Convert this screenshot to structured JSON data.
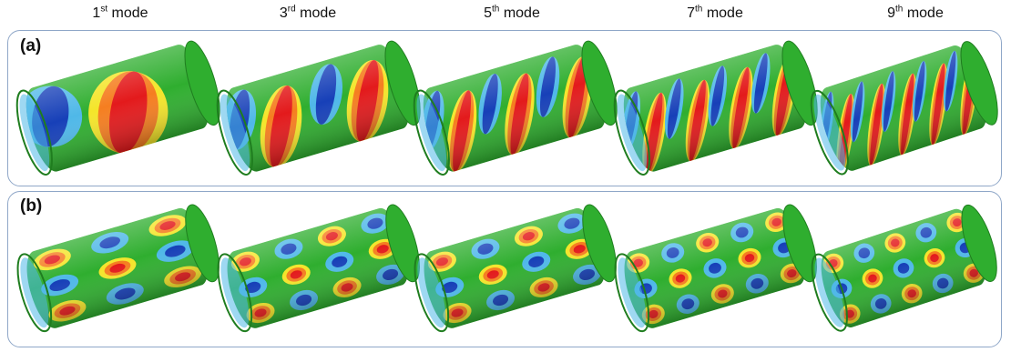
{
  "modes": [
    {
      "num": "1",
      "suffix": "st",
      "word": "mode"
    },
    {
      "num": "3",
      "suffix": "rd",
      "word": "mode"
    },
    {
      "num": "5",
      "suffix": "th",
      "word": "mode"
    },
    {
      "num": "7",
      "suffix": "th",
      "word": "mode"
    },
    {
      "num": "9",
      "suffix": "th",
      "word": "mode"
    }
  ],
  "panels": [
    {
      "label": "(a)",
      "pattern": "helical"
    },
    {
      "label": "(b)",
      "pattern": "checkerboard"
    }
  ],
  "colors": {
    "base": "#2fae2f",
    "red": "#e31a1c",
    "orange": "#f57e20",
    "yellow": "#f4e52a",
    "lightblue": "#4fb8e8",
    "blue": "#1740b8",
    "panel_border": "#8fa7c8"
  }
}
